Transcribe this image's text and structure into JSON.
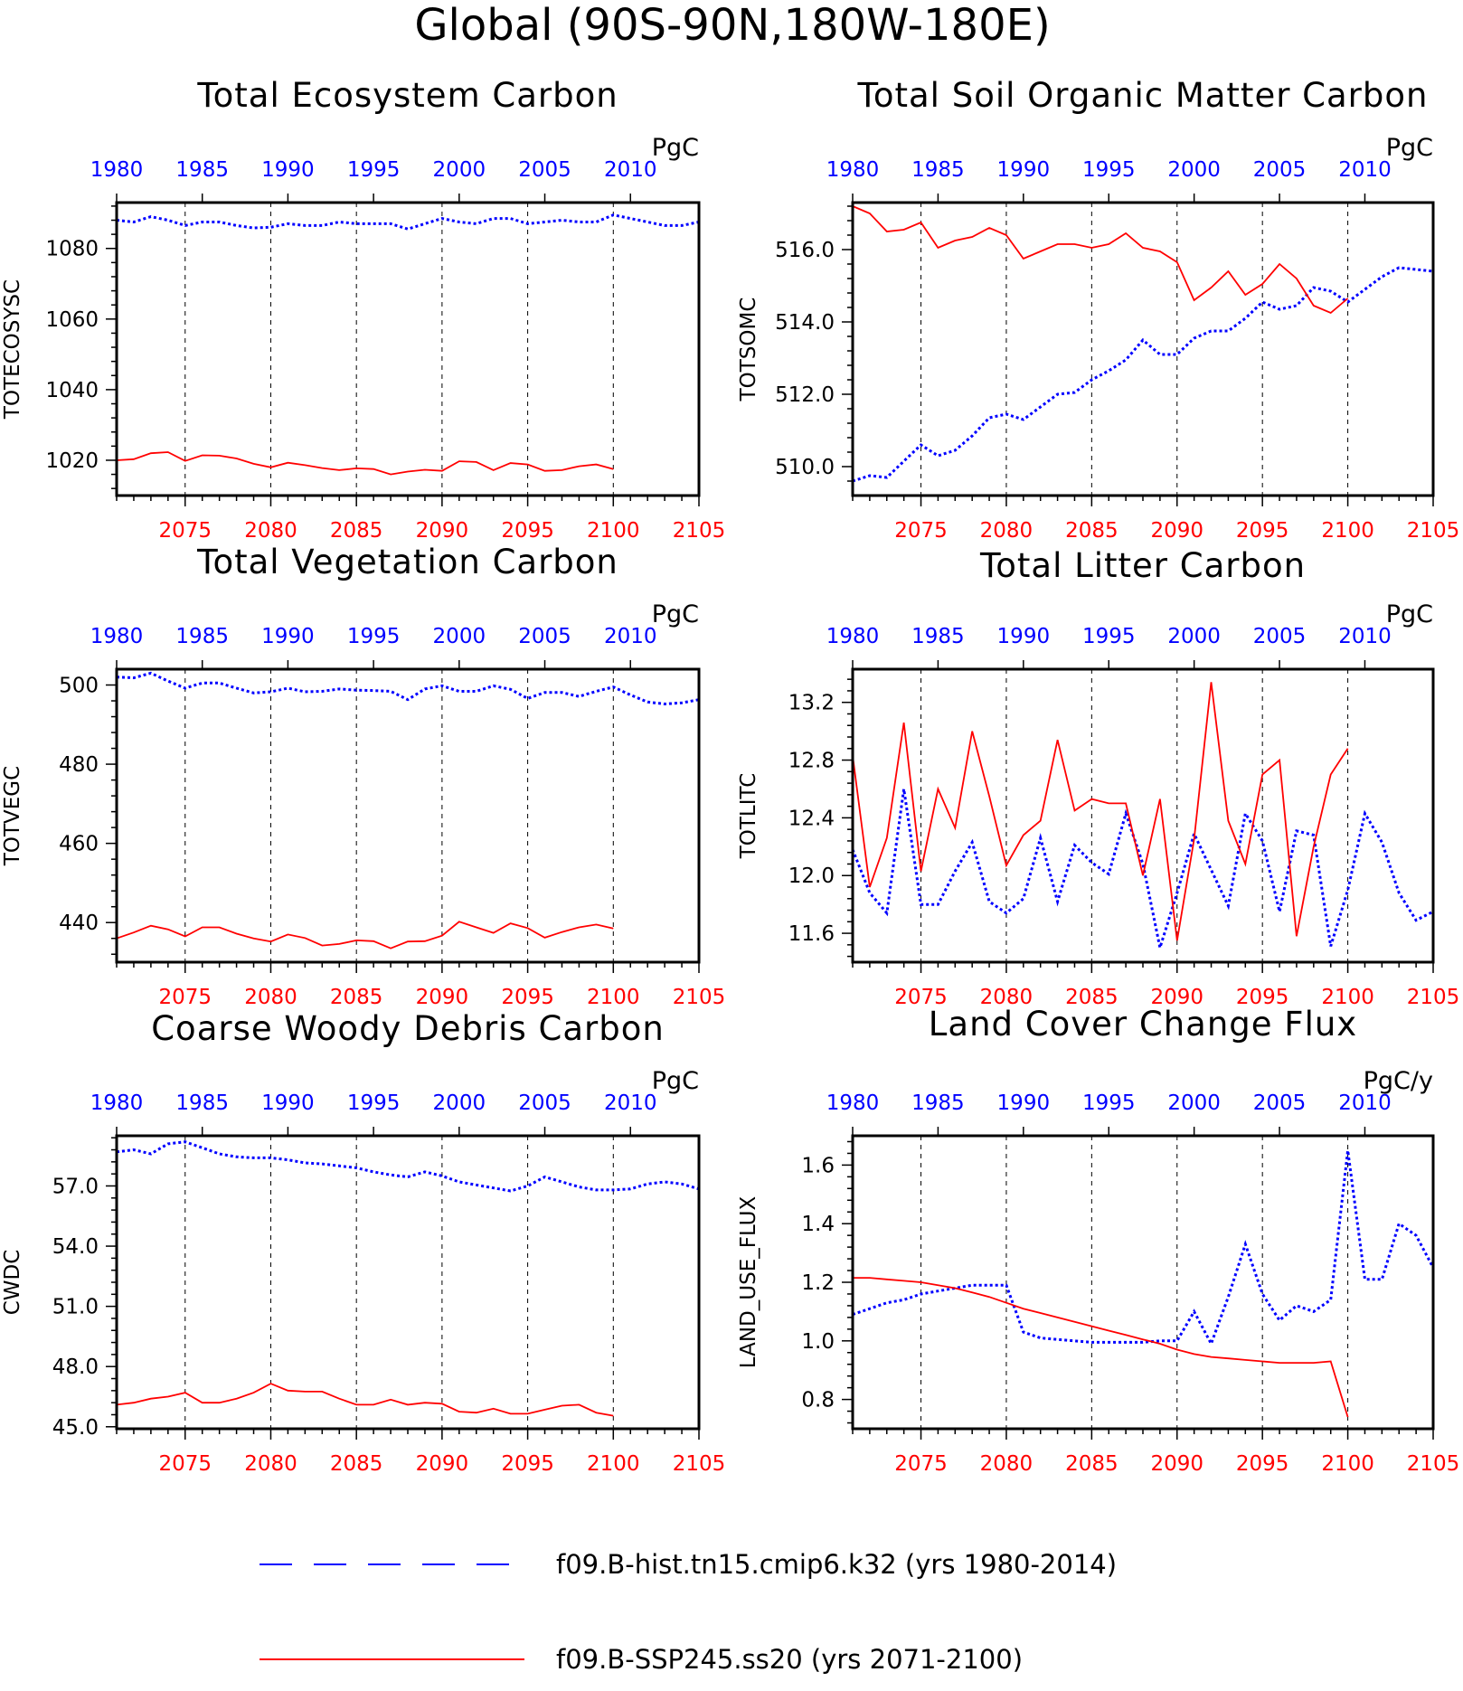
{
  "page_title": "Global (90S-90N,180W-180E)",
  "colors": {
    "hist": "#0000ff",
    "ssp": "#ff0000",
    "axis": "#000000",
    "grid": "#000000"
  },
  "legend": [
    {
      "label": "f09.B-hist.tn15.cmip6.k32 (yrs 1980-2014)",
      "color": "#0000ff",
      "style": "dashed"
    },
    {
      "label": "f09.B-SSP245.ss20 (yrs 2071-2100)",
      "color": "#ff0000",
      "style": "solid"
    }
  ],
  "chart_data": [
    {
      "type": "line",
      "title": "Total Ecosystem Carbon",
      "ylabel": "TOTECOSYSC",
      "units": "PgC",
      "ylim": [
        1010,
        1093
      ],
      "yticks": [
        1020,
        1040,
        1060,
        1080
      ],
      "ytick_labels": [
        "1020",
        "1040",
        "1060",
        "1080"
      ],
      "top_axis": {
        "xlim": [
          1980,
          2014
        ],
        "ticks": [
          1980,
          1985,
          1990,
          1995,
          2000,
          2005,
          2010
        ]
      },
      "bottom_axis": {
        "xlim": [
          2071,
          2105
        ],
        "ticks": [
          2075,
          2080,
          2085,
          2090,
          2095,
          2100,
          2105
        ]
      },
      "grid": "vertical-dashed",
      "series": [
        {
          "name": "f09.B-hist.tn15.cmip6.k32 (yrs 1980-2014)",
          "axis": "top",
          "x0": 1980,
          "values": [
            1088,
            1087.5,
            1089,
            1088,
            1086.5,
            1087.5,
            1087.5,
            1086.5,
            1085.8,
            1086,
            1087,
            1086.5,
            1086.5,
            1087.5,
            1087,
            1087,
            1087,
            1085.5,
            1087,
            1088.5,
            1087.5,
            1087,
            1088.5,
            1088.5,
            1087,
            1087.5,
            1088,
            1087.5,
            1087.5,
            1089.5,
            1088.5,
            1087.5,
            1086.5,
            1086.5,
            1087.5
          ]
        },
        {
          "name": "f09.B-SSP245.ss20 (yrs 2071-2100)",
          "axis": "bottom",
          "x0": 2071,
          "values": [
            1020,
            1020.3,
            1022,
            1022.3,
            1019.8,
            1021.4,
            1021.3,
            1020.5,
            1019,
            1018,
            1019.3,
            1018.6,
            1017.8,
            1017.2,
            1017.7,
            1017.5,
            1016,
            1016.8,
            1017.3,
            1017,
            1019.7,
            1019.5,
            1017.2,
            1019.2,
            1018.8,
            1017,
            1017.2,
            1018.3,
            1018.8,
            1017.5
          ]
        }
      ]
    },
    {
      "type": "line",
      "title": "Total Soil Organic Matter Carbon",
      "ylabel": "TOTSOMC",
      "units": "PgC",
      "ylim": [
        509.2,
        517.3
      ],
      "yticks": [
        510,
        512,
        514,
        516
      ],
      "ytick_labels": [
        "510.0",
        "512.0",
        "514.0",
        "516.0"
      ],
      "top_axis": {
        "xlim": [
          1980,
          2014
        ],
        "ticks": [
          1980,
          1985,
          1990,
          1995,
          2000,
          2005,
          2010
        ]
      },
      "bottom_axis": {
        "xlim": [
          2071,
          2105
        ],
        "ticks": [
          2075,
          2080,
          2085,
          2090,
          2095,
          2100,
          2105
        ]
      },
      "grid": "vertical-dashed",
      "series": [
        {
          "name": "f09.B-hist.tn15.cmip6.k32 (yrs 1980-2014)",
          "axis": "top",
          "x0": 1980,
          "values": [
            509.6,
            509.75,
            509.7,
            510.15,
            510.6,
            510.3,
            510.45,
            510.85,
            511.35,
            511.45,
            511.3,
            511.65,
            512,
            512.05,
            512.4,
            512.65,
            512.95,
            513.5,
            513.1,
            513.1,
            513.55,
            513.75,
            513.75,
            514.1,
            514.55,
            514.35,
            514.45,
            514.95,
            514.85,
            514.55,
            514.9,
            515.25,
            515.5,
            515.45,
            515.4
          ]
        },
        {
          "name": "f09.B-SSP245.ss20 (yrs 2071-2100)",
          "axis": "bottom",
          "x0": 2071,
          "values": [
            517.2,
            517,
            516.5,
            516.55,
            516.75,
            516.05,
            516.25,
            516.35,
            516.6,
            516.4,
            515.75,
            515.95,
            516.15,
            516.15,
            516.05,
            516.15,
            516.45,
            516.05,
            515.95,
            515.65,
            514.6,
            514.95,
            515.4,
            514.75,
            515.05,
            515.6,
            515.2,
            514.45,
            514.25,
            514.65
          ]
        }
      ]
    },
    {
      "type": "line",
      "title": "Total Vegetation Carbon",
      "ylabel": "TOTVEGC",
      "units": "PgC",
      "ylim": [
        430,
        504
      ],
      "yticks": [
        440,
        460,
        480,
        500
      ],
      "ytick_labels": [
        "440",
        "460",
        "480",
        "500"
      ],
      "top_axis": {
        "xlim": [
          1980,
          2014
        ],
        "ticks": [
          1980,
          1985,
          1990,
          1995,
          2000,
          2005,
          2010
        ]
      },
      "bottom_axis": {
        "xlim": [
          2071,
          2105
        ],
        "ticks": [
          2075,
          2080,
          2085,
          2090,
          2095,
          2100,
          2105
        ]
      },
      "grid": "vertical-dashed",
      "series": [
        {
          "name": "f09.B-hist.tn15.cmip6.k32 (yrs 1980-2014)",
          "axis": "top",
          "x0": 1980,
          "values": [
            502,
            501.8,
            503,
            501,
            499.2,
            500.5,
            500.5,
            499.2,
            498,
            498.3,
            499.2,
            498.3,
            498.4,
            499,
            498.7,
            498.6,
            498.4,
            496.3,
            499,
            499.8,
            498.4,
            498.4,
            499.8,
            498.9,
            496.6,
            498.1,
            498.1,
            497.1,
            498.4,
            499.5,
            497.5,
            495.7,
            495.2,
            495.5,
            496.3
          ]
        },
        {
          "name": "f09.B-SSP245.ss20 (yrs 2071-2100)",
          "axis": "bottom",
          "x0": 2071,
          "values": [
            436,
            437.5,
            439.2,
            438.3,
            436.5,
            438.8,
            438.8,
            437.2,
            436,
            435.2,
            437,
            436.1,
            434.2,
            434.6,
            435.5,
            435.3,
            433.5,
            435.2,
            435.3,
            436.7,
            440.2,
            438.8,
            437.4,
            439.8,
            438.6,
            436.2,
            437.6,
            438.8,
            439.5,
            438.5
          ]
        }
      ]
    },
    {
      "type": "line",
      "title": "Total Litter Carbon",
      "ylabel": "TOTLITC",
      "units": "PgC",
      "ylim": [
        11.4,
        13.43
      ],
      "yticks": [
        11.6,
        12.0,
        12.4,
        12.8,
        13.2
      ],
      "ytick_labels": [
        "11.6",
        "12.0",
        "12.4",
        "12.8",
        "13.2"
      ],
      "top_axis": {
        "xlim": [
          1980,
          2014
        ],
        "ticks": [
          1980,
          1985,
          1990,
          1995,
          2000,
          2005,
          2010
        ]
      },
      "bottom_axis": {
        "xlim": [
          2071,
          2105
        ],
        "ticks": [
          2075,
          2080,
          2085,
          2090,
          2095,
          2100,
          2105
        ]
      },
      "grid": "vertical-dashed",
      "series": [
        {
          "name": "f09.B-hist.tn15.cmip6.k32 (yrs 1980-2014)",
          "axis": "top",
          "x0": 1980,
          "values": [
            12.18,
            11.88,
            11.74,
            12.6,
            11.8,
            11.8,
            12.03,
            12.23,
            11.82,
            11.74,
            11.84,
            12.26,
            11.82,
            12.21,
            12.09,
            12.01,
            12.43,
            12.08,
            11.5,
            11.88,
            12.29,
            12.04,
            11.79,
            12.43,
            12.24,
            11.75,
            12.31,
            12.28,
            11.51,
            11.9,
            12.43,
            12.23,
            11.88,
            11.69,
            11.75
          ]
        },
        {
          "name": "f09.B-SSP245.ss20 (yrs 2071-2100)",
          "axis": "bottom",
          "x0": 2071,
          "values": [
            12.83,
            11.92,
            12.26,
            13.06,
            12.03,
            12.6,
            12.33,
            13.0,
            12.55,
            12.07,
            12.28,
            12.38,
            12.94,
            12.45,
            12.53,
            12.5,
            12.5,
            12.0,
            12.53,
            11.55,
            12.25,
            13.34,
            12.38,
            12.08,
            12.7,
            12.8,
            11.58,
            12.2,
            12.7,
            12.88
          ]
        }
      ]
    },
    {
      "type": "line",
      "title": "Coarse Woody Debris Carbon",
      "ylabel": "CWDC",
      "units": "PgC",
      "ylim": [
        44.9,
        59.5
      ],
      "yticks": [
        45,
        48,
        51,
        54,
        57
      ],
      "ytick_labels": [
        "45.0",
        "48.0",
        "51.0",
        "54.0",
        "57.0"
      ],
      "top_axis": {
        "xlim": [
          1980,
          2014
        ],
        "ticks": [
          1980,
          1985,
          1990,
          1995,
          2000,
          2005,
          2010
        ]
      },
      "bottom_axis": {
        "xlim": [
          2071,
          2105
        ],
        "ticks": [
          2075,
          2080,
          2085,
          2090,
          2095,
          2100,
          2105
        ]
      },
      "grid": "vertical-dashed",
      "series": [
        {
          "name": "f09.B-hist.tn15.cmip6.k32 (yrs 1980-2014)",
          "axis": "top",
          "x0": 1980,
          "values": [
            58.7,
            58.8,
            58.6,
            59.1,
            59.2,
            58.9,
            58.6,
            58.45,
            58.4,
            58.4,
            58.3,
            58.15,
            58.1,
            58,
            57.9,
            57.7,
            57.55,
            57.45,
            57.7,
            57.5,
            57.2,
            57.05,
            56.9,
            56.75,
            57,
            57.45,
            57.2,
            56.95,
            56.8,
            56.8,
            56.85,
            57.1,
            57.2,
            57.1,
            56.85
          ]
        },
        {
          "name": "f09.B-SSP245.ss20 (yrs 2071-2100)",
          "axis": "bottom",
          "x0": 2071,
          "values": [
            46.1,
            46.2,
            46.4,
            46.5,
            46.7,
            46.2,
            46.2,
            46.4,
            46.7,
            47.15,
            46.8,
            46.75,
            46.75,
            46.4,
            46.1,
            46.1,
            46.35,
            46.1,
            46.2,
            46.15,
            45.75,
            45.7,
            45.9,
            45.65,
            45.65,
            45.85,
            46.05,
            46.1,
            45.7,
            45.55
          ]
        }
      ]
    },
    {
      "type": "line",
      "title": "Land Cover Change Flux",
      "ylabel": "LAND_USE_FLUX",
      "units": "PgC/y",
      "ylim": [
        0.7,
        1.7
      ],
      "yticks": [
        0.8,
        1.0,
        1.2,
        1.4,
        1.6
      ],
      "ytick_labels": [
        "0.8",
        "1.0",
        "1.2",
        "1.4",
        "1.6"
      ],
      "top_axis": {
        "xlim": [
          1980,
          2014
        ],
        "ticks": [
          1980,
          1985,
          1990,
          1995,
          2000,
          2005,
          2010
        ]
      },
      "bottom_axis": {
        "xlim": [
          2071,
          2105
        ],
        "ticks": [
          2075,
          2080,
          2085,
          2090,
          2095,
          2100,
          2105
        ]
      },
      "grid": "vertical-dashed",
      "series": [
        {
          "name": "f09.B-hist.tn15.cmip6.k32 (yrs 1980-2014)",
          "axis": "top",
          "x0": 1980,
          "values": [
            1.09,
            1.11,
            1.13,
            1.14,
            1.16,
            1.17,
            1.18,
            1.19,
            1.19,
            1.19,
            1.03,
            1.01,
            1.005,
            1.0,
            0.995,
            0.995,
            0.995,
            0.995,
            1.0,
            1.0,
            1.1,
            0.99,
            1.15,
            1.33,
            1.16,
            1.07,
            1.12,
            1.1,
            1.14,
            1.65,
            1.21,
            1.21,
            1.4,
            1.36,
            1.25
          ]
        },
        {
          "name": "f09.B-SSP245.ss20 (yrs 2071-2100)",
          "axis": "bottom",
          "x0": 2071,
          "values": [
            1.215,
            1.215,
            1.21,
            1.205,
            1.2,
            1.19,
            1.18,
            1.165,
            1.15,
            1.13,
            1.11,
            1.095,
            1.08,
            1.065,
            1.05,
            1.035,
            1.02,
            1.005,
            0.99,
            0.97,
            0.955,
            0.945,
            0.94,
            0.935,
            0.93,
            0.925,
            0.925,
            0.925,
            0.93,
            0.74
          ]
        }
      ]
    }
  ]
}
